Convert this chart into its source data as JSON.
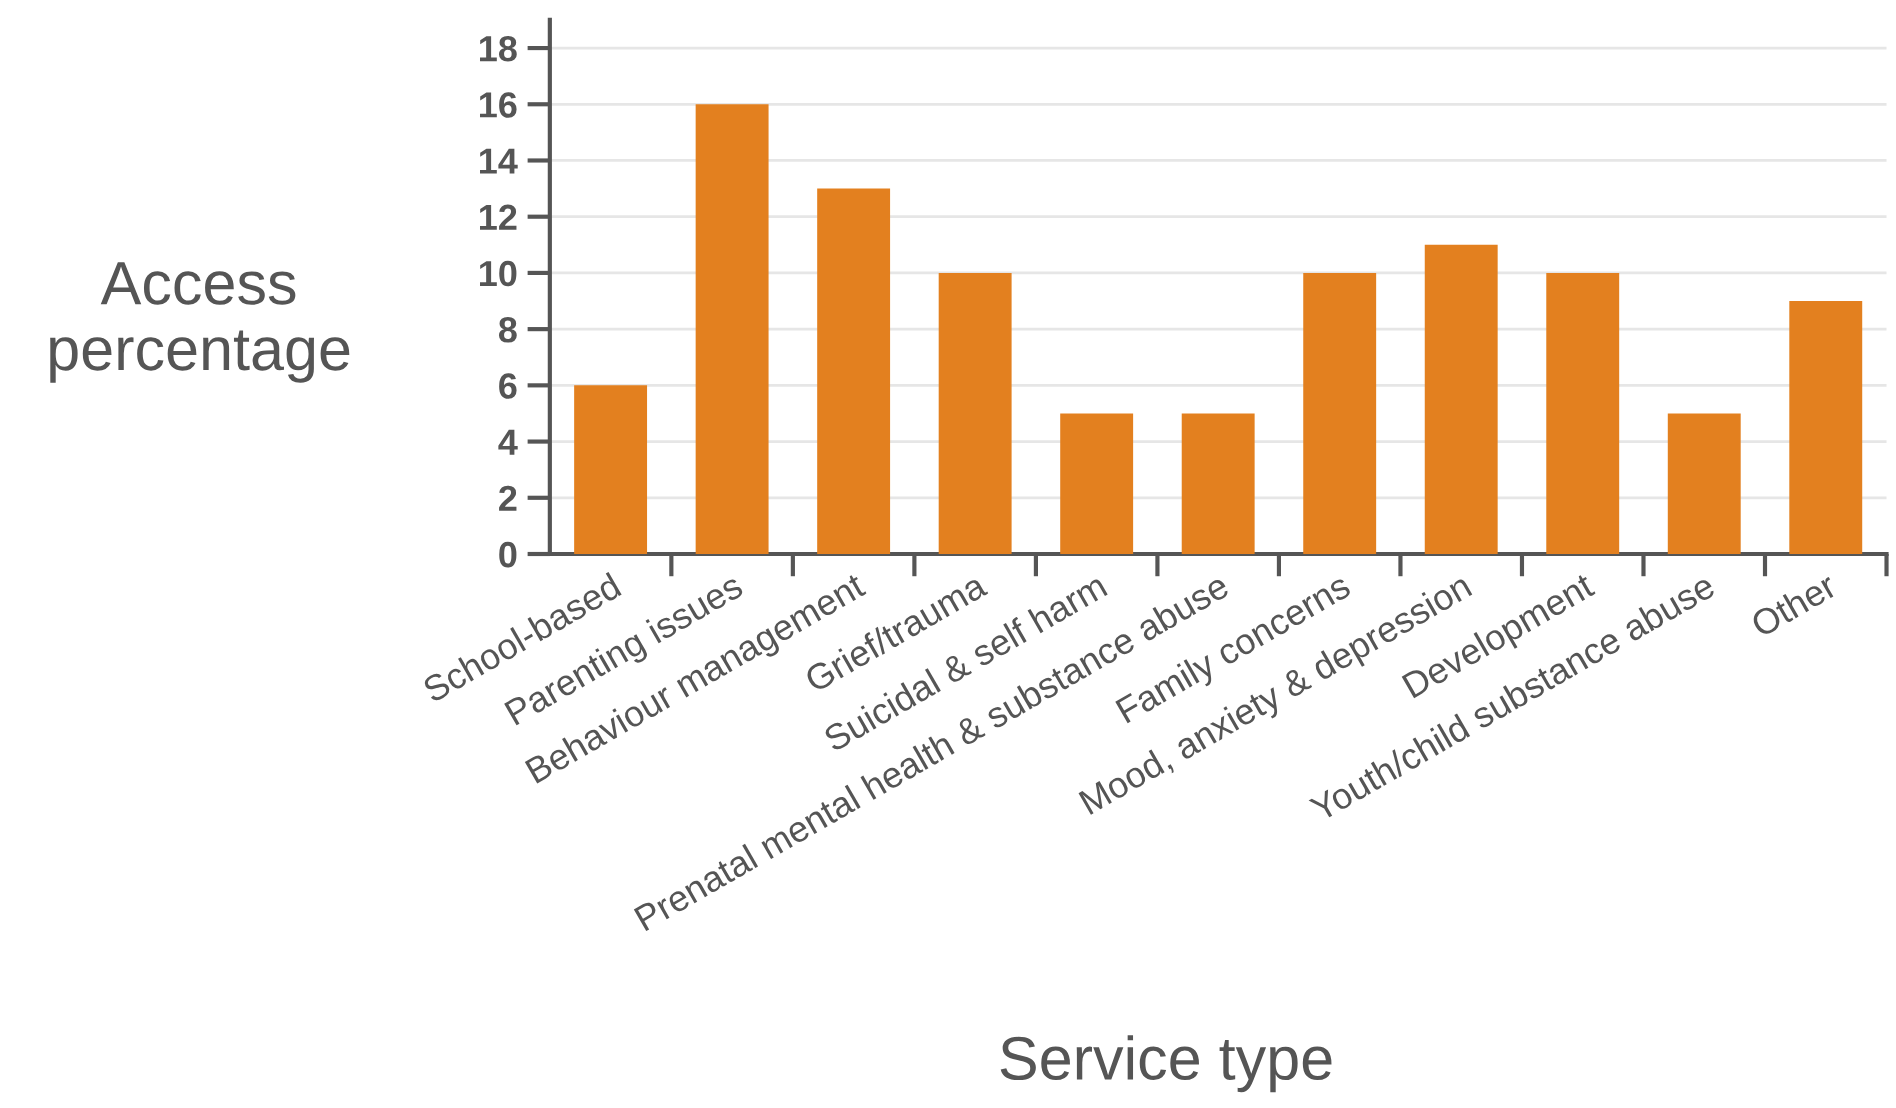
{
  "chart_data": {
    "type": "bar",
    "xlabel": "Service type",
    "ylabel": "Access\npercentage",
    "categories": [
      "School-based",
      "Parenting issues",
      "Behaviour management",
      "Grief/trauma",
      "Suicidal & self harm",
      "Prenatal mental health & substance abuse",
      "Family concerns",
      "Mood, anxiety & depression",
      "Development",
      "Youth/child substance abuse",
      "Other"
    ],
    "values": [
      6,
      16,
      13,
      10,
      5,
      5,
      10,
      11,
      10,
      5,
      9
    ],
    "color": "#e3801f",
    "ylim": [
      0,
      19
    ],
    "yticks": [
      0,
      2,
      4,
      6,
      8,
      10,
      12,
      14,
      16,
      18
    ],
    "grid": "y",
    "legend": false
  }
}
